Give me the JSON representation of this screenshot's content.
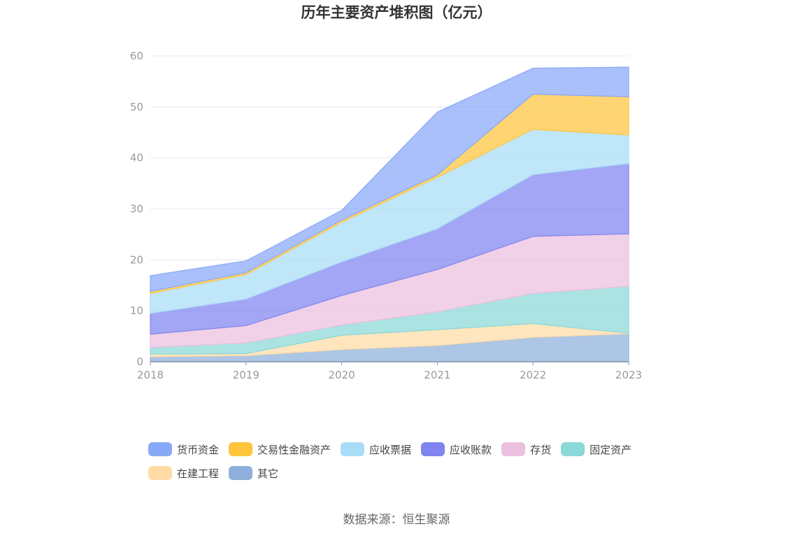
{
  "chart_data": {
    "type": "area",
    "stacked": true,
    "title": "历年主要资产堆积图（亿元）",
    "categories": [
      "2018",
      "2019",
      "2020",
      "2021",
      "2022",
      "2023"
    ],
    "ylim": [
      0,
      60
    ],
    "yticks": [
      0,
      10,
      20,
      30,
      40,
      50,
      60
    ],
    "grid": true,
    "legend_position": "bottom",
    "series": [
      {
        "name": "其它",
        "color": "#8fb0dc",
        "values": [
          1.0,
          1.2,
          2.4,
          3.2,
          4.8,
          5.5
        ]
      },
      {
        "name": "在建工程",
        "color": "#ffdca6",
        "values": [
          0.5,
          0.4,
          2.8,
          3.1,
          2.7,
          0.1
        ]
      },
      {
        "name": "固定资产",
        "color": "#8bd8d8",
        "values": [
          1.3,
          2.1,
          2.0,
          3.5,
          5.9,
          9.2
        ]
      },
      {
        "name": "存货",
        "color": "#ebbfde",
        "values": [
          2.6,
          3.4,
          5.8,
          8.3,
          11.2,
          10.3
        ]
      },
      {
        "name": "应收账款",
        "color": "#7f84f0",
        "values": [
          4.1,
          5.2,
          6.6,
          8.0,
          12.1,
          13.8
        ]
      },
      {
        "name": "应收票据",
        "color": "#a8dcf7",
        "values": [
          3.9,
          4.8,
          7.8,
          10.1,
          8.9,
          5.6
        ]
      },
      {
        "name": "交易性金融资产",
        "color": "#ffc53d",
        "values": [
          0.4,
          0.4,
          0.4,
          0.5,
          6.9,
          7.5
        ]
      },
      {
        "name": "货币资金",
        "color": "#88a8f8",
        "values": [
          3.1,
          2.3,
          1.9,
          12.3,
          5.1,
          5.8
        ]
      }
    ]
  },
  "legend": [
    {
      "name": "货币资金",
      "color": "#88a8f8"
    },
    {
      "name": "交易性金融资产",
      "color": "#ffc53d"
    },
    {
      "name": "应收票据",
      "color": "#a8dcf7"
    },
    {
      "name": "应收账款",
      "color": "#7f84f0"
    },
    {
      "name": "存货",
      "color": "#ebbfde"
    },
    {
      "name": "固定资产",
      "color": "#8bd8d8"
    },
    {
      "name": "在建工程",
      "color": "#ffdca6"
    },
    {
      "name": "其它",
      "color": "#8fb0dc"
    }
  ],
  "source": "数据来源：恒生聚源"
}
